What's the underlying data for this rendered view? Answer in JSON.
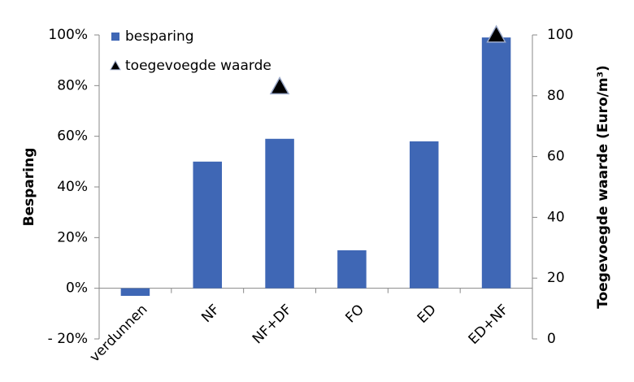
{
  "chart_data": {
    "type": "bar",
    "categories": [
      "verdunnen",
      "NF",
      "NF+DF",
      "FO",
      "ED",
      "ED+NF"
    ],
    "series": [
      {
        "name": "besparing",
        "type": "bar",
        "color": "#3f67b5",
        "axis": "y",
        "values": [
          -3,
          50,
          59,
          15,
          58,
          99
        ]
      },
      {
        "name": "toegevoegde waarde",
        "type": "scatter",
        "marker": "triangle",
        "color": "#000000",
        "axis": "y2",
        "values": [
          null,
          null,
          83,
          null,
          null,
          100
        ]
      }
    ],
    "ylabel": "Besparing",
    "y2label": "Toegevoegde waarde (Euro/m³)",
    "ylim": [
      -20,
      100
    ],
    "yticks": [
      {
        "value": -20,
        "label": "- 20%"
      },
      {
        "value": 0,
        "label": "0%"
      },
      {
        "value": 20,
        "label": "20%"
      },
      {
        "value": 40,
        "label": "40%"
      },
      {
        "value": 60,
        "label": "60%"
      },
      {
        "value": 80,
        "label": "80%"
      },
      {
        "value": 100,
        "label": "100%"
      }
    ],
    "y2lim": [
      0,
      100
    ],
    "y2ticks": [
      0,
      20,
      40,
      60,
      80,
      100
    ],
    "legend": "upper left",
    "grid": false
  }
}
